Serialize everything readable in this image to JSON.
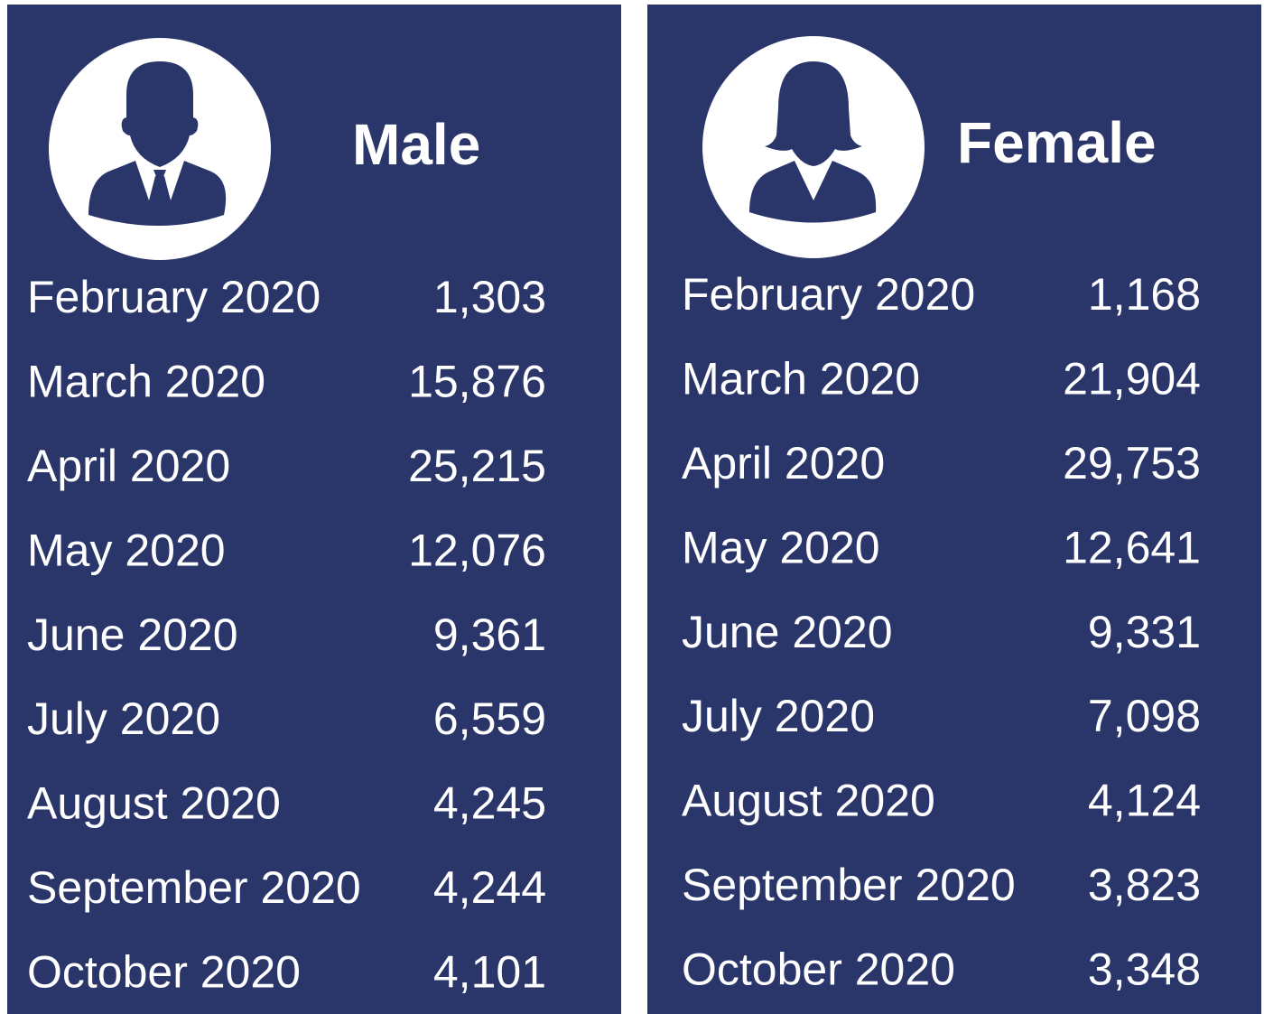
{
  "panels": [
    {
      "title": "Male",
      "rows": [
        [
          "February 2020",
          "1,303"
        ],
        [
          "March 2020",
          "15,876"
        ],
        [
          "April 2020",
          "25,215"
        ],
        [
          "May 2020",
          "12,076"
        ],
        [
          "June 2020",
          "9,361"
        ],
        [
          "July 2020",
          "6,559"
        ],
        [
          "August 2020",
          "4,245"
        ],
        [
          "September 2020",
          "4,244"
        ],
        [
          "October 2020",
          "4,101"
        ]
      ]
    },
    {
      "title": "Female",
      "rows": [
        [
          "February 2020",
          "1,168"
        ],
        [
          "March 2020",
          "21,904"
        ],
        [
          "April 2020",
          "29,753"
        ],
        [
          "May 2020",
          "12,641"
        ],
        [
          "June 2020",
          "9,331"
        ],
        [
          "July 2020",
          "7,098"
        ],
        [
          "August 2020",
          "4,124"
        ],
        [
          "September 2020",
          "3,823"
        ],
        [
          "October 2020",
          "3,348"
        ]
      ]
    }
  ]
}
